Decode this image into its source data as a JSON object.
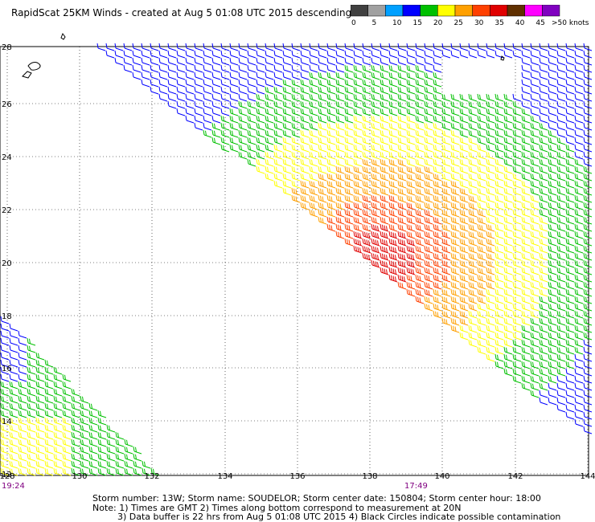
{
  "title": "RapidScat 25KM Winds - created at Aug  5 01:08 UTC 2015 descending",
  "legend": {
    "labels": [
      "0",
      "5",
      "10",
      "15",
      "20",
      "25",
      "30",
      "35",
      "40",
      "45",
      ">50 knots"
    ],
    "colors": [
      "#404040",
      "#a0a0a0",
      "#00a0ff",
      "#0000ff",
      "#00c000",
      "#ffff00",
      "#ffa000",
      "#ff4000",
      "#e00000",
      "#603000",
      "#ff00ff",
      "#8000c0"
    ]
  },
  "axes": {
    "lon_ticks": [
      "128",
      "130",
      "132",
      "134",
      "136",
      "138",
      "140",
      "142",
      "144"
    ],
    "lat_ticks": [
      "12",
      "14",
      "16",
      "18",
      "20",
      "22",
      "24",
      "26",
      "28"
    ]
  },
  "times": {
    "left": "19:24",
    "center": "17:49"
  },
  "footer": {
    "line1": "Storm number: 13W;  Storm name: SOUDELOR;  Storm center date: 150804;  Storm center hour: 18:00",
    "line2": "Note: 1) Times are GMT  2) Times along bottom correspond to measurement at 20N",
    "line3": "3) Data buffer is 22 hrs from Aug  5 01:08 UTC 2015   4) Black Circles indicate possible contamination"
  }
}
